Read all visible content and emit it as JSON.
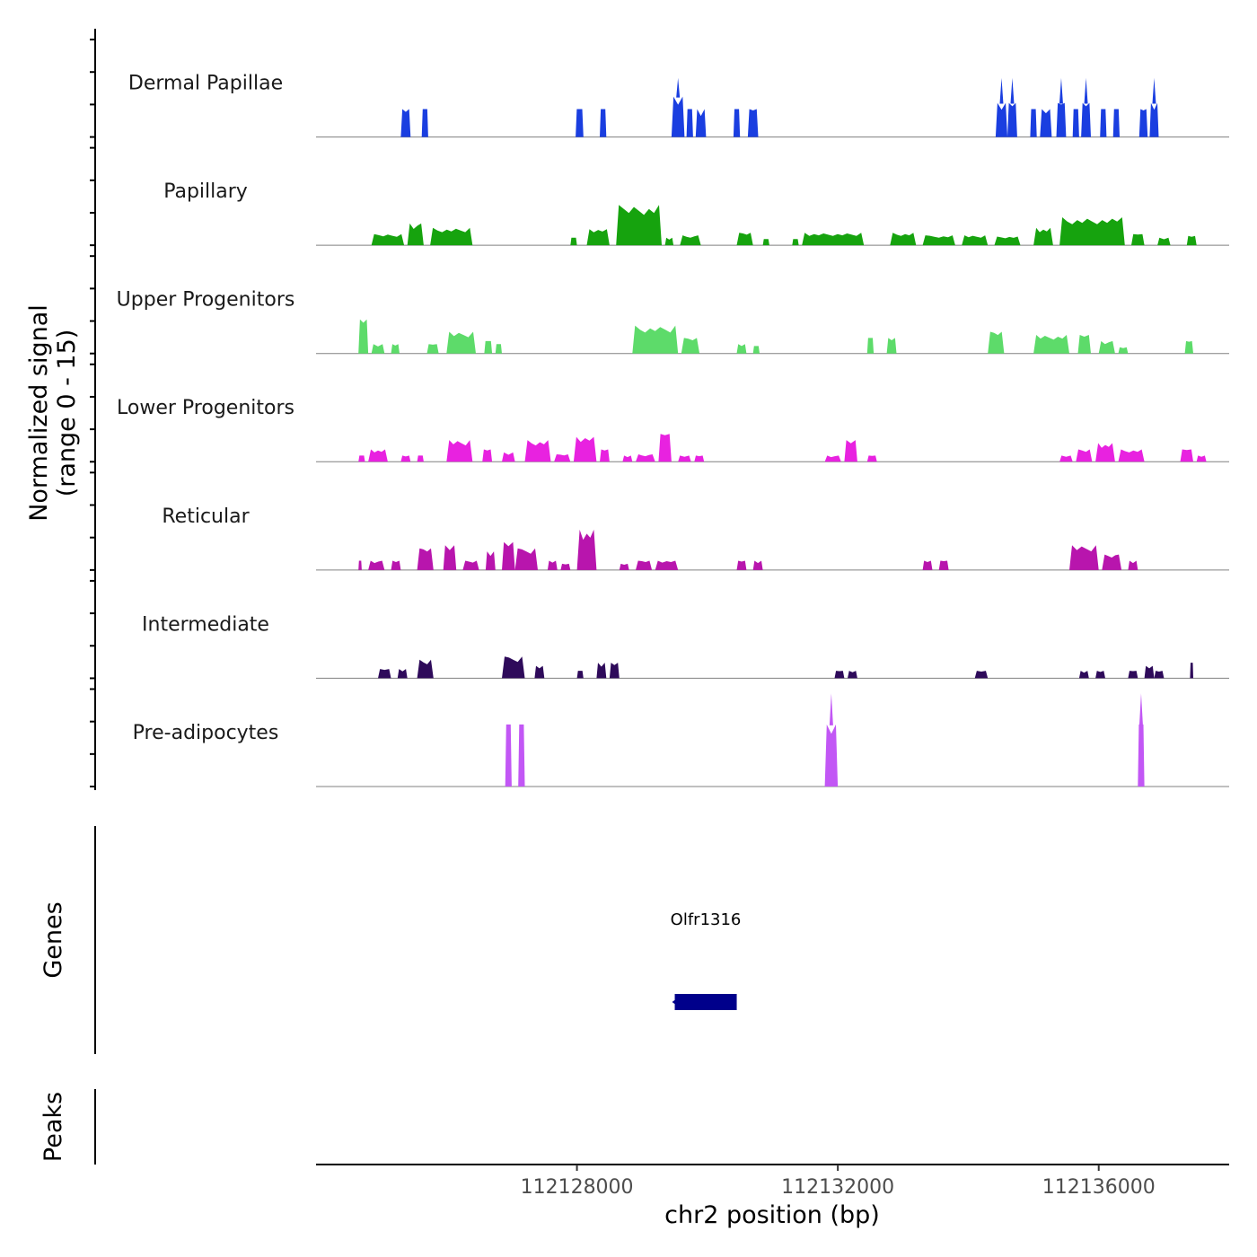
{
  "chart_data": {
    "type": "area",
    "title": "",
    "ylabel_line1": "Normalized signal",
    "ylabel_line2": "(range 0 - 15)",
    "xlabel": "chr2 position (bp)",
    "chromosome": "chr2",
    "xlim": [
      112124000,
      112138000
    ],
    "ylim": [
      0,
      15
    ],
    "x_ticks": [
      112128000,
      112132000,
      112136000
    ],
    "x_tick_labels": [
      "112128000",
      "112132000",
      "112136000"
    ],
    "tracks": [
      {
        "name": "Dermal Papillae",
        "color": "#1a3ee0",
        "regions": [
          {
            "start": 112125300,
            "end": 112125450,
            "height": 4.5
          },
          {
            "start": 112125620,
            "end": 112125720,
            "height": 4.5
          },
          {
            "start": 112127980,
            "end": 112128100,
            "height": 4.5
          },
          {
            "start": 112128350,
            "end": 112128450,
            "height": 4.5
          },
          {
            "start": 112129450,
            "end": 112129650,
            "height": 6.5,
            "peak": 9.5
          },
          {
            "start": 112129680,
            "end": 112129780,
            "height": 4.5
          },
          {
            "start": 112129820,
            "end": 112129980,
            "height": 4.5
          },
          {
            "start": 112130400,
            "end": 112130500,
            "height": 4.5
          },
          {
            "start": 112130620,
            "end": 112130780,
            "height": 4.5
          },
          {
            "start": 112134420,
            "end": 112134600,
            "height": 5.5,
            "peak": 9.5
          },
          {
            "start": 112134600,
            "end": 112134750,
            "height": 5.5,
            "peak": 9.5
          },
          {
            "start": 112134950,
            "end": 112135050,
            "height": 4.5
          },
          {
            "start": 112135100,
            "end": 112135280,
            "height": 4.5
          },
          {
            "start": 112135350,
            "end": 112135500,
            "height": 5.5,
            "peak": 9.5
          },
          {
            "start": 112135600,
            "end": 112135700,
            "height": 4.5
          },
          {
            "start": 112135730,
            "end": 112135880,
            "height": 5.5,
            "peak": 9.5
          },
          {
            "start": 112136020,
            "end": 112136120,
            "height": 4.5
          },
          {
            "start": 112136220,
            "end": 112136320,
            "height": 4.5
          },
          {
            "start": 112136620,
            "end": 112136750,
            "height": 4.5
          },
          {
            "start": 112136780,
            "end": 112136920,
            "height": 5.5,
            "peak": 9.5
          }
        ]
      },
      {
        "name": "Papillary",
        "color": "#16a30e",
        "regions": [
          {
            "start": 112124850,
            "end": 112125350,
            "height": 1.8
          },
          {
            "start": 112125400,
            "end": 112125650,
            "height": 3.5
          },
          {
            "start": 112125750,
            "end": 112126400,
            "height": 2.8
          },
          {
            "start": 112127900,
            "end": 112128000,
            "height": 1.2
          },
          {
            "start": 112128150,
            "end": 112128500,
            "height": 2.6
          },
          {
            "start": 112128600,
            "end": 112129300,
            "height": 6.5
          },
          {
            "start": 112129350,
            "end": 112129480,
            "height": 1.2
          },
          {
            "start": 112129580,
            "end": 112129900,
            "height": 1.6
          },
          {
            "start": 112130450,
            "end": 112130700,
            "height": 2.0
          },
          {
            "start": 112130850,
            "end": 112130950,
            "height": 1.0
          },
          {
            "start": 112131300,
            "end": 112131400,
            "height": 1.0
          },
          {
            "start": 112131450,
            "end": 112132400,
            "height": 2.0
          },
          {
            "start": 112132800,
            "end": 112133200,
            "height": 2.0
          },
          {
            "start": 112133300,
            "end": 112133800,
            "height": 1.6
          },
          {
            "start": 112133900,
            "end": 112134300,
            "height": 1.6
          },
          {
            "start": 112134400,
            "end": 112134800,
            "height": 1.4
          },
          {
            "start": 112135000,
            "end": 112135300,
            "height": 2.8
          },
          {
            "start": 112135400,
            "end": 112136400,
            "height": 4.5
          },
          {
            "start": 112136500,
            "end": 112136700,
            "height": 1.8
          },
          {
            "start": 112136900,
            "end": 112137100,
            "height": 1.2
          },
          {
            "start": 112137350,
            "end": 112137500,
            "height": 1.5
          }
        ]
      },
      {
        "name": "Upper Progenitors",
        "color": "#5ddb6a",
        "regions": [
          {
            "start": 112124650,
            "end": 112124800,
            "height": 5.5
          },
          {
            "start": 112124850,
            "end": 112125050,
            "height": 1.5
          },
          {
            "start": 112125150,
            "end": 112125280,
            "height": 1.5
          },
          {
            "start": 112125700,
            "end": 112125880,
            "height": 1.5
          },
          {
            "start": 112126000,
            "end": 112126450,
            "height": 3.5
          },
          {
            "start": 112126580,
            "end": 112126700,
            "height": 2.0
          },
          {
            "start": 112126750,
            "end": 112126850,
            "height": 1.5
          },
          {
            "start": 112128850,
            "end": 112129550,
            "height": 4.5
          },
          {
            "start": 112129600,
            "end": 112129880,
            "height": 2.5
          },
          {
            "start": 112130450,
            "end": 112130600,
            "height": 1.5
          },
          {
            "start": 112130700,
            "end": 112130800,
            "height": 1.2
          },
          {
            "start": 112132450,
            "end": 112132550,
            "height": 2.5
          },
          {
            "start": 112132750,
            "end": 112132900,
            "height": 2.5
          },
          {
            "start": 112134300,
            "end": 112134550,
            "height": 3.5
          },
          {
            "start": 112135000,
            "end": 112135550,
            "height": 3.0
          },
          {
            "start": 112135680,
            "end": 112135880,
            "height": 3.0
          },
          {
            "start": 112136000,
            "end": 112136250,
            "height": 2.0
          },
          {
            "start": 112136300,
            "end": 112136450,
            "height": 1.0
          },
          {
            "start": 112137320,
            "end": 112137450,
            "height": 2.0
          }
        ]
      },
      {
        "name": "Lower Progenitors",
        "color": "#e822e0",
        "regions": [
          {
            "start": 112124650,
            "end": 112124750,
            "height": 1.0
          },
          {
            "start": 112124800,
            "end": 112125100,
            "height": 2.0
          },
          {
            "start": 112125300,
            "end": 112125450,
            "height": 1.0
          },
          {
            "start": 112125550,
            "end": 112125650,
            "height": 1.0
          },
          {
            "start": 112126000,
            "end": 112126400,
            "height": 3.5
          },
          {
            "start": 112126550,
            "end": 112126700,
            "height": 2.0
          },
          {
            "start": 112126850,
            "end": 112127050,
            "height": 1.5
          },
          {
            "start": 112127200,
            "end": 112127600,
            "height": 3.5
          },
          {
            "start": 112127650,
            "end": 112127900,
            "height": 1.2
          },
          {
            "start": 112127950,
            "end": 112128300,
            "height": 4.0
          },
          {
            "start": 112128350,
            "end": 112128500,
            "height": 2.0
          },
          {
            "start": 112128700,
            "end": 112128850,
            "height": 1.0
          },
          {
            "start": 112128900,
            "end": 112129200,
            "height": 1.2
          },
          {
            "start": 112129250,
            "end": 112129450,
            "height": 4.5
          },
          {
            "start": 112129550,
            "end": 112129750,
            "height": 1.0
          },
          {
            "start": 112129800,
            "end": 112129950,
            "height": 1.0
          },
          {
            "start": 112131800,
            "end": 112132050,
            "height": 1.0
          },
          {
            "start": 112132100,
            "end": 112132300,
            "height": 3.5
          },
          {
            "start": 112132450,
            "end": 112132600,
            "height": 1.0
          },
          {
            "start": 112135400,
            "end": 112135600,
            "height": 1.0
          },
          {
            "start": 112135650,
            "end": 112135900,
            "height": 2.0
          },
          {
            "start": 112135950,
            "end": 112136250,
            "height": 3.0
          },
          {
            "start": 112136300,
            "end": 112136700,
            "height": 2.0
          },
          {
            "start": 112137250,
            "end": 112137450,
            "height": 2.0
          },
          {
            "start": 112137500,
            "end": 112137650,
            "height": 1.0
          }
        ]
      },
      {
        "name": "Reticular",
        "color": "#b815ad",
        "regions": [
          {
            "start": 112124650,
            "end": 112124700,
            "height": 1.5
          },
          {
            "start": 112124800,
            "end": 112125050,
            "height": 1.5
          },
          {
            "start": 112125150,
            "end": 112125300,
            "height": 1.5
          },
          {
            "start": 112125550,
            "end": 112125800,
            "height": 3.5
          },
          {
            "start": 112125950,
            "end": 112126150,
            "height": 4.0
          },
          {
            "start": 112126250,
            "end": 112126500,
            "height": 1.5
          },
          {
            "start": 112126600,
            "end": 112126750,
            "height": 3.0
          },
          {
            "start": 112126850,
            "end": 112127050,
            "height": 4.5
          },
          {
            "start": 112127050,
            "end": 112127400,
            "height": 3.5
          },
          {
            "start": 112127550,
            "end": 112127700,
            "height": 1.5
          },
          {
            "start": 112127750,
            "end": 112127900,
            "height": 1.0
          },
          {
            "start": 112128000,
            "end": 112128300,
            "height": 6.5
          },
          {
            "start": 112128650,
            "end": 112128800,
            "height": 1.0
          },
          {
            "start": 112128900,
            "end": 112129150,
            "height": 1.5
          },
          {
            "start": 112129200,
            "end": 112129550,
            "height": 1.5
          },
          {
            "start": 112130450,
            "end": 112130600,
            "height": 1.5
          },
          {
            "start": 112130700,
            "end": 112130850,
            "height": 1.5
          },
          {
            "start": 112133300,
            "end": 112133450,
            "height": 1.5
          },
          {
            "start": 112133550,
            "end": 112133700,
            "height": 1.5
          },
          {
            "start": 112135550,
            "end": 112136000,
            "height": 4.0
          },
          {
            "start": 112136050,
            "end": 112136350,
            "height": 2.5
          },
          {
            "start": 112136450,
            "end": 112136600,
            "height": 1.5
          }
        ]
      },
      {
        "name": "Intermediate",
        "color": "#2e0a5a",
        "regions": [
          {
            "start": 112124950,
            "end": 112125150,
            "height": 1.5
          },
          {
            "start": 112125250,
            "end": 112125400,
            "height": 1.5
          },
          {
            "start": 112125550,
            "end": 112125800,
            "height": 3.0
          },
          {
            "start": 112126850,
            "end": 112127200,
            "height": 3.5
          },
          {
            "start": 112127350,
            "end": 112127500,
            "height": 2.0
          },
          {
            "start": 112128000,
            "end": 112128100,
            "height": 1.2
          },
          {
            "start": 112128300,
            "end": 112128450,
            "height": 2.5
          },
          {
            "start": 112128500,
            "end": 112128650,
            "height": 2.5
          },
          {
            "start": 112131950,
            "end": 112132100,
            "height": 1.2
          },
          {
            "start": 112132150,
            "end": 112132300,
            "height": 1.2
          },
          {
            "start": 112134100,
            "end": 112134300,
            "height": 1.2
          },
          {
            "start": 112135700,
            "end": 112135850,
            "height": 1.2
          },
          {
            "start": 112135950,
            "end": 112136100,
            "height": 1.2
          },
          {
            "start": 112136450,
            "end": 112136600,
            "height": 1.2
          },
          {
            "start": 112136700,
            "end": 112136850,
            "height": 2.0
          },
          {
            "start": 112136850,
            "end": 112137000,
            "height": 1.2
          },
          {
            "start": 112137400,
            "end": 112137450,
            "height": 2.5
          }
        ]
      },
      {
        "name": "Pre-adipocytes",
        "color": "#c257f5",
        "regions": [
          {
            "start": 112126900,
            "end": 112127000,
            "height": 10.0
          },
          {
            "start": 112127100,
            "end": 112127200,
            "height": 10.0
          },
          {
            "start": 112131800,
            "end": 112132000,
            "height": 10.0,
            "peak": 15.0
          },
          {
            "start": 112136600,
            "end": 112136700,
            "height": 10.0,
            "peak": 15.0
          }
        ]
      }
    ],
    "genes_label": "Genes",
    "genes": [
      {
        "name": "Olfr1316",
        "start": 112129500,
        "end": 112130450,
        "strand": "-",
        "color": "#00008b"
      }
    ],
    "peaks_label": "Peaks",
    "peaks": []
  }
}
